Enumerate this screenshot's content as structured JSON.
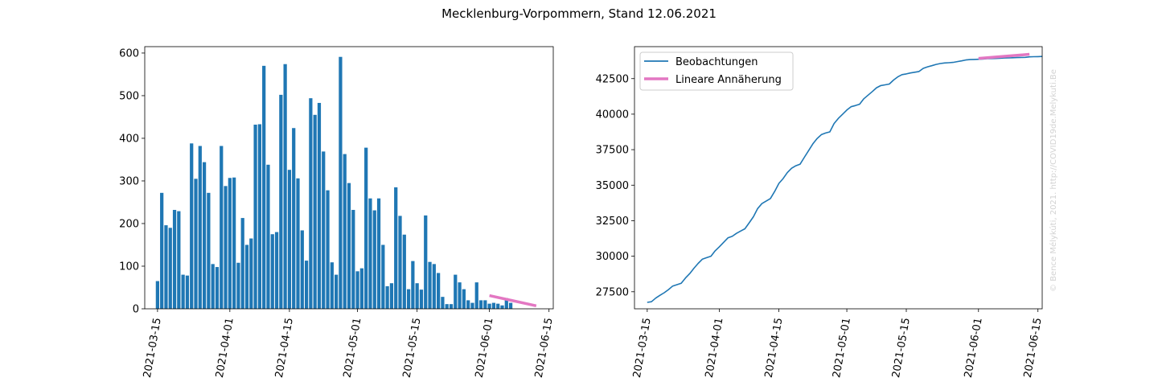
{
  "suptitle": "Mecklenburg-Vorpommern, Stand 12.06.2021",
  "watermark": "© Bence Mélykúti, 2021. http://COVID19de.Melykuti.Be",
  "colors": {
    "bars": "#1f77b4",
    "line": "#1f77b4",
    "fit": "#e377c2",
    "watermark": "#d3d3d3"
  },
  "chart_data": [
    {
      "type": "bar",
      "x_type": "date",
      "xlim": [
        "2021-03-12",
        "2021-06-16"
      ],
      "ylim": [
        0,
        615
      ],
      "x_ticks": [
        "2021-03-15",
        "2021-04-01",
        "2021-04-15",
        "2021-05-01",
        "2021-05-15",
        "2021-06-01",
        "2021-06-15"
      ],
      "y_ticks": [
        0,
        100,
        200,
        300,
        400,
        500,
        600
      ],
      "start_date": "2021-03-15",
      "values": [
        65,
        272,
        196,
        190,
        232,
        229,
        80,
        78,
        388,
        305,
        382,
        344,
        272,
        105,
        98,
        382,
        288,
        307,
        308,
        108,
        213,
        150,
        165,
        432,
        433,
        570,
        338,
        175,
        180,
        502,
        574,
        326,
        424,
        306,
        184,
        113,
        494,
        455,
        483,
        369,
        278,
        109,
        80,
        591,
        363,
        295,
        232,
        88,
        95,
        378,
        259,
        231,
        259,
        150,
        53,
        60,
        285,
        218,
        174,
        46,
        112,
        60,
        45,
        219,
        110,
        105,
        84,
        28,
        11,
        11,
        80,
        62,
        46,
        20,
        14,
        62,
        20,
        20,
        12,
        14,
        12,
        8,
        25,
        14
      ],
      "series": [
        {
          "name": "Beobachtungen"
        },
        {
          "name": "Lineare Annäherung",
          "x": [
            "2021-06-01",
            "2021-06-12"
          ],
          "y": [
            31,
            7
          ]
        }
      ]
    },
    {
      "type": "line",
      "x_type": "date",
      "xlim": [
        "2021-03-12",
        "2021-06-16"
      ],
      "ylim": [
        26300,
        44750
      ],
      "x_ticks": [
        "2021-03-15",
        "2021-04-01",
        "2021-04-15",
        "2021-05-01",
        "2021-05-15",
        "2021-06-01",
        "2021-06-15"
      ],
      "y_ticks": [
        27500,
        30000,
        32500,
        35000,
        37500,
        40000,
        42500
      ],
      "legend_position": "upper-left",
      "series": [
        {
          "name": "Beobachtungen",
          "start_date": "2021-03-15",
          "y": [
            26750,
            26800,
            27050,
            27250,
            27430,
            27650,
            27900,
            28000,
            28100,
            28470,
            28780,
            29150,
            29500,
            29800,
            29900,
            30000,
            30380,
            30670,
            30980,
            31290,
            31400,
            31610,
            31770,
            31930,
            32350,
            32780,
            33360,
            33700,
            33880,
            34060,
            34560,
            35130,
            35460,
            35890,
            36190,
            36370,
            36480,
            36970,
            37430,
            37910,
            38280,
            38560,
            38670,
            38750,
            39340,
            39700,
            39990,
            40290,
            40520,
            40600,
            40700,
            41080,
            41340,
            41590,
            41860,
            42010,
            42060,
            42120,
            42400,
            42620,
            42780,
            42830,
            42900,
            42950,
            43000,
            43220,
            43330,
            43410,
            43500,
            43560,
            43600,
            43620,
            43640,
            43700,
            43750,
            43810,
            43840,
            43850,
            43860,
            43880,
            43900,
            43910,
            43920,
            43930,
            43950,
            43960,
            43970,
            43980,
            43990,
            44000,
            44030,
            44040,
            44050,
            44060
          ]
        },
        {
          "name": "Lineare Annäherung",
          "x": [
            "2021-06-01",
            "2021-06-13"
          ],
          "y": [
            43920,
            44210
          ]
        }
      ]
    }
  ]
}
